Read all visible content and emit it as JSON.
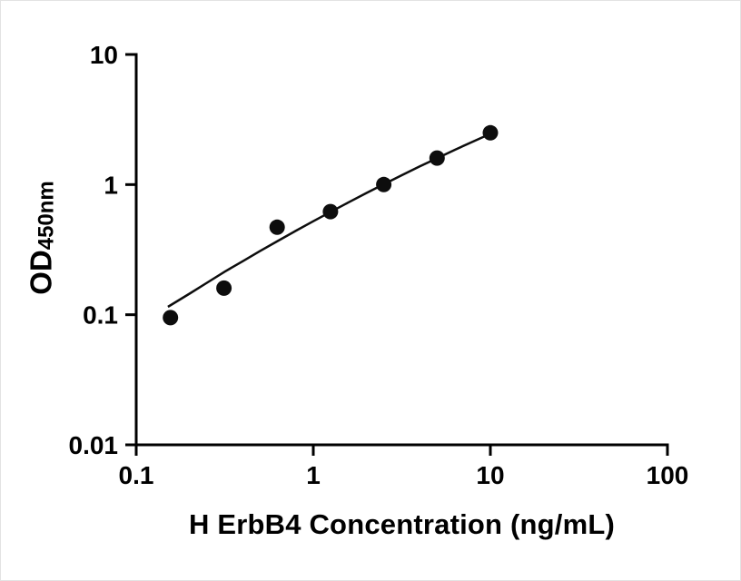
{
  "figure": {
    "background": "#ffffff"
  },
  "style": {
    "axis_color": "#000000",
    "axis_width": 3,
    "tick_length": 12,
    "marker_color": "#0d0d0d",
    "line_color": "#0d0d0d"
  },
  "chart_data": {
    "type": "scatter",
    "title": "",
    "xlabel": "H ErbB4 Concentration (ng/mL)",
    "ylabel": "OD450nm",
    "ylabel_main": "OD",
    "ylabel_sub": "450nm",
    "x_scale": "log",
    "y_scale": "log",
    "xlim": [
      0.1,
      100
    ],
    "ylim": [
      0.01,
      10
    ],
    "grid": false,
    "legend": false,
    "x_ticks": [
      {
        "value": 0.1,
        "label": "0.1"
      },
      {
        "value": 1,
        "label": "1"
      },
      {
        "value": 10,
        "label": "10"
      },
      {
        "value": 100,
        "label": "100"
      }
    ],
    "y_ticks": [
      {
        "value": 0.01,
        "label": "0.01"
      },
      {
        "value": 0.1,
        "label": "0.1"
      },
      {
        "value": 1,
        "label": "1"
      },
      {
        "value": 10,
        "label": "10"
      }
    ],
    "series": [
      {
        "name": "standard-points",
        "type": "scatter",
        "marker": "circle",
        "color": "#0d0d0d",
        "x": [
          0.156,
          0.313,
          0.625,
          1.25,
          2.5,
          5,
          10
        ],
        "y": [
          0.095,
          0.16,
          0.47,
          0.62,
          1.0,
          1.6,
          2.5
        ]
      },
      {
        "name": "fit-curve",
        "type": "line",
        "color": "#0d0d0d",
        "x": [
          0.151,
          0.2,
          0.251,
          0.316,
          0.398,
          0.501,
          0.631,
          0.794,
          1.0,
          1.259,
          1.585,
          1.995,
          2.512,
          3.162,
          3.981,
          5.012,
          6.31,
          7.943,
          10
        ],
        "y": [
          0.115,
          0.145,
          0.176,
          0.214,
          0.257,
          0.309,
          0.369,
          0.44,
          0.523,
          0.619,
          0.732,
          0.861,
          1.01,
          1.181,
          1.377,
          1.596,
          1.851,
          2.135,
          2.455
        ]
      }
    ]
  }
}
